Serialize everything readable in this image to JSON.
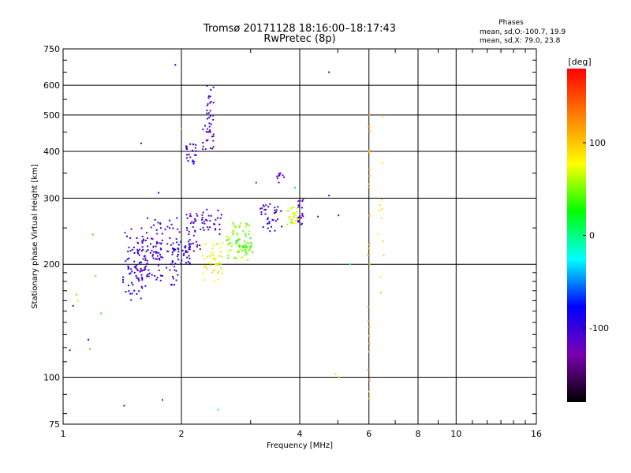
{
  "chart_data": {
    "type": "scatter",
    "title": "Tromsø 20171128 18:16:00–18:17:43",
    "subtitle": "RwPretec (8p)",
    "xlabel": "Frequency [MHz]",
    "ylabel": "Stationary phase Virtual Height [km]",
    "xscale": "log",
    "yscale": "log",
    "xlim": [
      1,
      16
    ],
    "ylim": [
      75,
      750
    ],
    "xticks": [
      1,
      2,
      4,
      6,
      8,
      10,
      16
    ],
    "yticks": [
      75,
      100,
      200,
      300,
      400,
      500,
      600,
      750
    ],
    "grid": true,
    "stats": {
      "heading": "Phases",
      "o_line": "mean, sd,O:-100.7, 19.9",
      "x_line": "mean, sd,X:  79.0, 23.8"
    },
    "colorbar": {
      "unit_label": "[deg]",
      "range": [
        -180,
        180
      ],
      "ticks": [
        "100",
        "0",
        "-100"
      ],
      "tick_values": [
        100,
        0,
        -100
      ],
      "colormap": [
        "#000000",
        "#7a00b0",
        "#0000ff",
        "#00ffff",
        "#00ff00",
        "#ffff00",
        "#ff8000",
        "#ff0000"
      ]
    },
    "points": [
      {
        "x": 1.04,
        "y": 118,
        "phase": -110
      },
      {
        "x": 1.06,
        "y": 155,
        "phase": -115
      },
      {
        "x": 1.08,
        "y": 166,
        "phase": 110
      },
      {
        "x": 1.09,
        "y": 160,
        "phase": 95
      },
      {
        "x": 1.16,
        "y": 126,
        "phase": -80
      },
      {
        "x": 1.17,
        "y": 119,
        "phase": 125
      },
      {
        "x": 1.19,
        "y": 240,
        "phase": 130
      },
      {
        "x": 1.21,
        "y": 186,
        "phase": 40
      },
      {
        "x": 1.25,
        "y": 148,
        "phase": 30
      },
      {
        "x": 1.43,
        "y": 84,
        "phase": -130
      },
      {
        "x": 1.79,
        "y": 87,
        "phase": -120
      },
      {
        "x": 1.93,
        "y": 680,
        "phase": -90
      },
      {
        "x": 2.0,
        "y": 460,
        "phase": 110
      },
      {
        "x": 2.48,
        "y": 82,
        "phase": -20
      },
      {
        "x": 3.1,
        "y": 330,
        "phase": -60
      },
      {
        "x": 3.89,
        "y": 320,
        "phase": 20
      },
      {
        "x": 4.45,
        "y": 268,
        "phase": -130
      },
      {
        "x": 4.75,
        "y": 650,
        "phase": -100
      },
      {
        "x": 4.75,
        "y": 305,
        "phase": -95
      },
      {
        "x": 5.02,
        "y": 270,
        "phase": -130
      },
      {
        "x": 5.38,
        "y": 200,
        "phase": -15
      },
      {
        "x": 4.94,
        "y": 102,
        "phase": 60
      },
      {
        "x": 5.03,
        "y": 100,
        "phase": 50
      },
      {
        "x": 1.75,
        "y": 310,
        "phase": -95
      },
      {
        "x": 1.58,
        "y": 420,
        "phase": -120
      }
    ],
    "clusters": [
      {
        "x_range": [
          1.42,
          1.63
        ],
        "y_range": [
          160,
          250
        ],
        "phase": -95,
        "count": 70
      },
      {
        "x_range": [
          1.52,
          1.78
        ],
        "y_range": [
          185,
          240
        ],
        "phase": -110,
        "count": 55
      },
      {
        "x_range": [
          1.63,
          1.98
        ],
        "y_range": [
          175,
          270
        ],
        "phase": -105,
        "count": 70
      },
      {
        "x_range": [
          1.88,
          2.12
        ],
        "y_range": [
          200,
          230
        ],
        "phase": -95,
        "count": 40
      },
      {
        "x_range": [
          2.05,
          2.25
        ],
        "y_range": [
          215,
          280
        ],
        "phase": -110,
        "count": 35
      },
      {
        "x_range": [
          2.25,
          2.55
        ],
        "y_range": [
          240,
          280
        ],
        "phase": -105,
        "count": 30
      },
      {
        "x_range": [
          2.25,
          2.55
        ],
        "y_range": [
          180,
          230
        ],
        "phase": 80,
        "count": 45
      },
      {
        "x_range": [
          2.6,
          3.0
        ],
        "y_range": [
          205,
          260
        ],
        "phase": 55,
        "count": 65
      },
      {
        "x_range": [
          2.75,
          3.05
        ],
        "y_range": [
          215,
          235
        ],
        "phase": 35,
        "count": 25
      },
      {
        "x_range": [
          3.15,
          3.6
        ],
        "y_range": [
          245,
          290
        ],
        "phase": -100,
        "count": 35
      },
      {
        "x_range": [
          3.5,
          3.65
        ],
        "y_range": [
          330,
          350
        ],
        "phase": -120,
        "count": 10
      },
      {
        "x_range": [
          3.72,
          3.98
        ],
        "y_range": [
          255,
          285
        ],
        "phase": 70,
        "count": 30
      },
      {
        "x_range": [
          3.95,
          4.1
        ],
        "y_range": [
          255,
          300
        ],
        "phase": -110,
        "count": 18
      },
      {
        "x_range": [
          2.05,
          2.18
        ],
        "y_range": [
          370,
          420
        ],
        "phase": -100,
        "count": 22
      },
      {
        "x_range": [
          2.25,
          2.42
        ],
        "y_range": [
          405,
          470
        ],
        "phase": -110,
        "count": 25
      },
      {
        "x_range": [
          2.32,
          2.42
        ],
        "y_range": [
          470,
          600
        ],
        "phase": -100,
        "count": 22
      },
      {
        "x_range": [
          5.97,
          6.03
        ],
        "y_range": [
          85,
          520
        ],
        "phase": 110,
        "count": 28
      },
      {
        "x_range": [
          6.3,
          6.55
        ],
        "y_range": [
          165,
          500
        ],
        "phase": 95,
        "count": 12
      }
    ]
  }
}
